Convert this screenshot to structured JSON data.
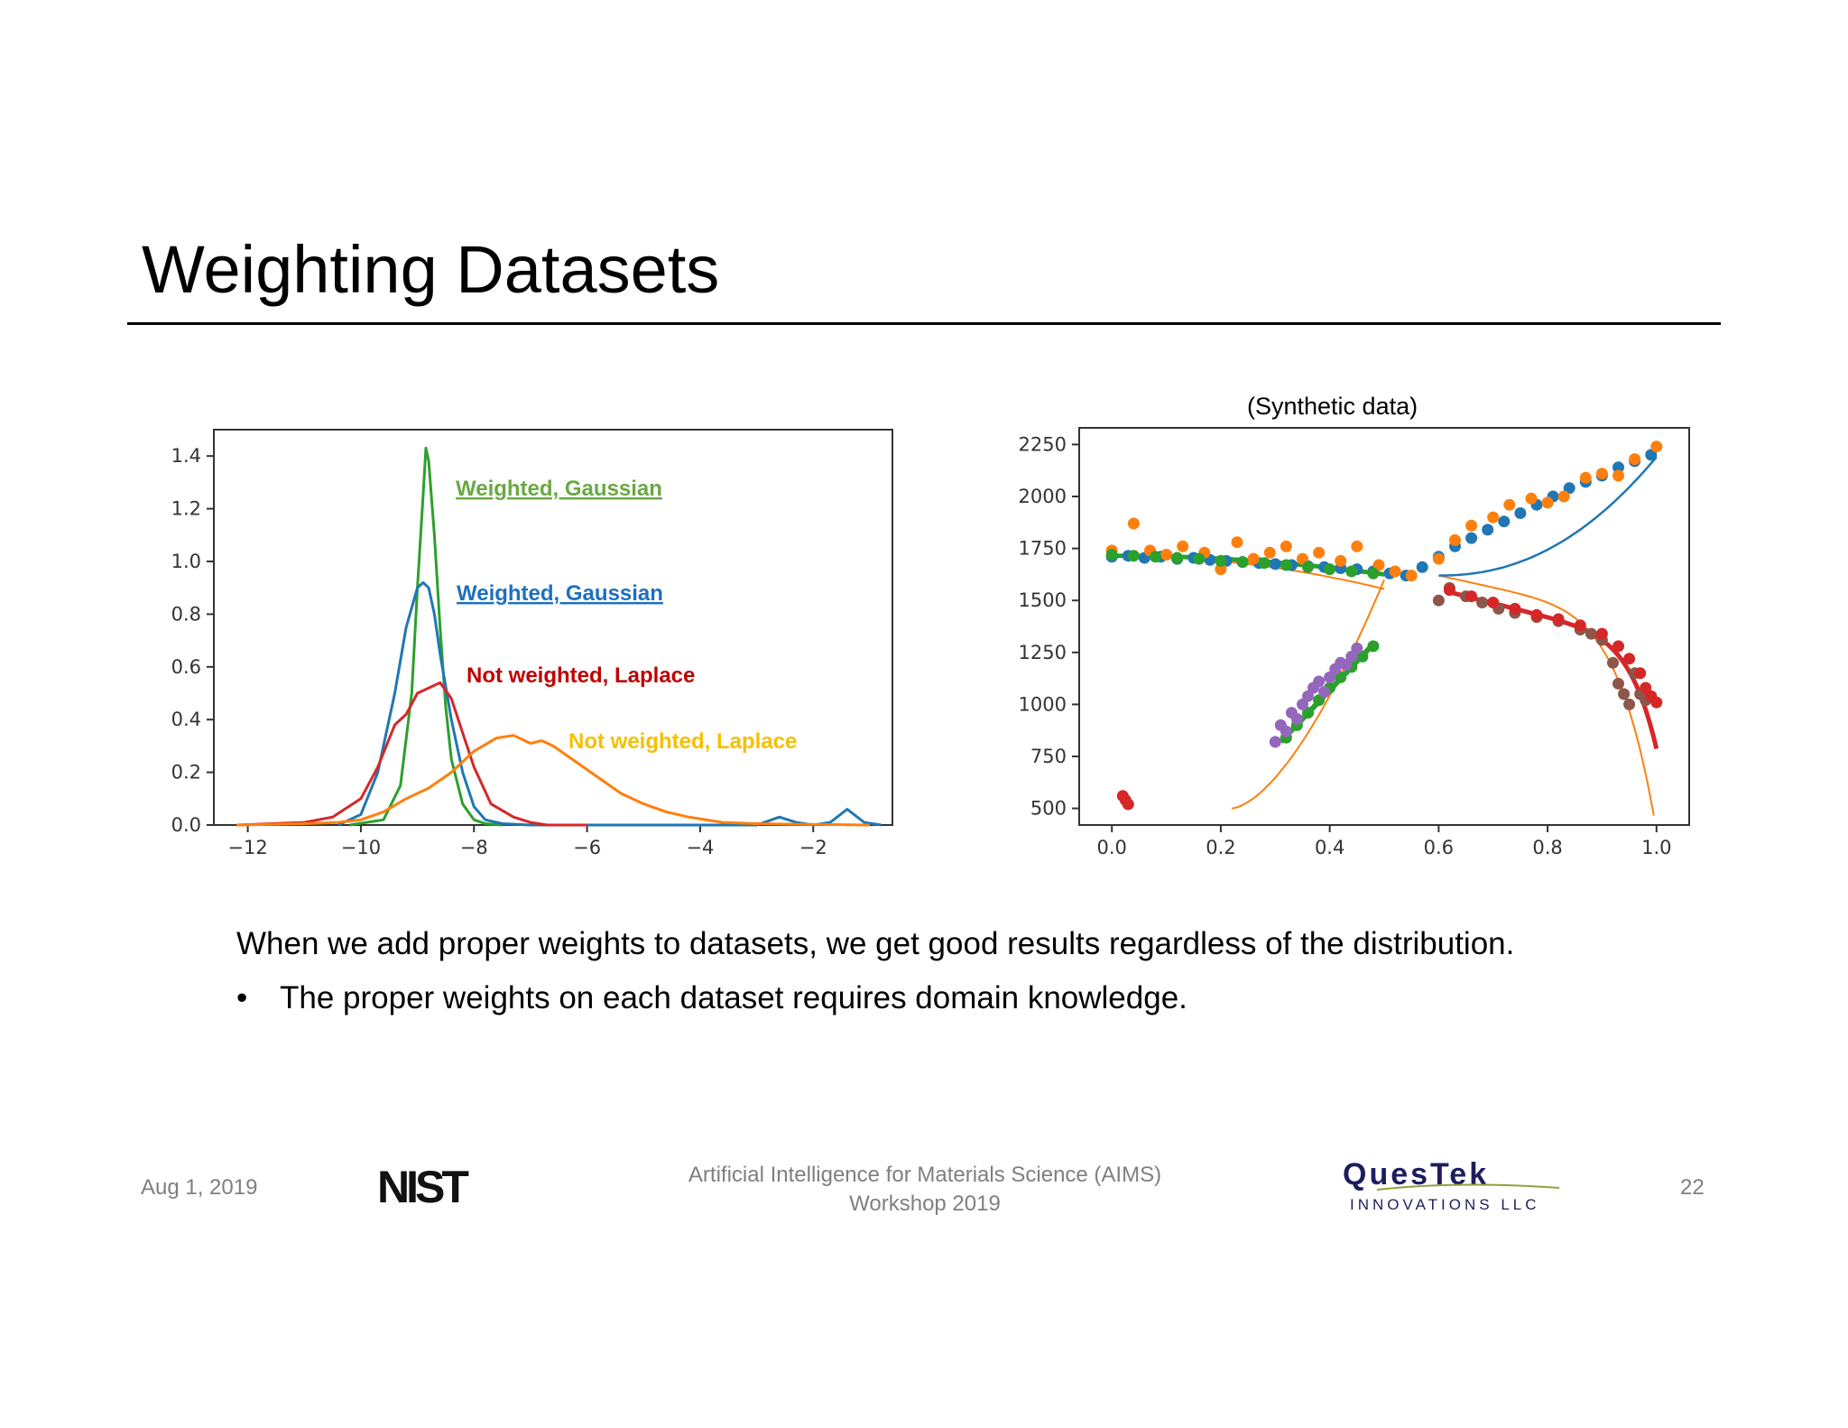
{
  "slide": {
    "title": "Weighting Datasets",
    "synthetic_label": "(Synthetic data)",
    "body_text": "When we add proper weights to datasets, we get good results regardless of the distribution.",
    "bullet_text": "The proper weights on each dataset requires domain knowledge.",
    "bullet_symbol": "•"
  },
  "footer": {
    "date": "Aug 1, 2019",
    "center_line1": "Artificial Intelligence for Materials Science (AIMS)",
    "center_line2": "Workshop 2019",
    "page_number": "22",
    "left_logo": "NIST",
    "right_logo_main": "QuesTek",
    "right_logo_sub": "INNOVATIONS LLC"
  },
  "chart_data": [
    {
      "type": "line",
      "xlim": [
        -12.6,
        -0.6
      ],
      "ylim": [
        0,
        1.5
      ],
      "xticks": [
        -12,
        -10,
        -8,
        -6,
        -4,
        -2
      ],
      "xtick_labels": [
        "−12",
        "−10",
        "−8",
        "−6",
        "−4",
        "−2"
      ],
      "yticks": [
        0,
        0.2,
        0.4,
        0.6,
        0.8,
        1.0,
        1.2,
        1.4
      ],
      "ytick_labels": [
        "0.0",
        "0.2",
        "0.4",
        "0.6",
        "0.8",
        "1.0",
        "1.2",
        "1.4"
      ],
      "annotations": [
        {
          "text": "Weighted, Gaussian",
          "color": "#6aa844",
          "underline": true
        },
        {
          "text": "Weighted, Gaussian",
          "color": "#1f6fbf",
          "underline": true
        },
        {
          "text": "Not weighted, Laplace",
          "color": "#c00000",
          "underline": false
        },
        {
          "text": "Not weighted, Laplace",
          "color": "#f5c000",
          "underline": false
        }
      ],
      "series": [
        {
          "color": "#2ca02c",
          "x": [
            -10.2,
            -9.6,
            -9.3,
            -9.1,
            -9.0,
            -8.9,
            -8.85,
            -8.8,
            -8.7,
            -8.6,
            -8.5,
            -8.4,
            -8.2,
            -8.0,
            -7.8,
            -7.5
          ],
          "y": [
            0,
            0.02,
            0.15,
            0.5,
            0.9,
            1.25,
            1.43,
            1.38,
            1.1,
            0.75,
            0.45,
            0.25,
            0.08,
            0.02,
            0.005,
            0
          ]
        },
        {
          "color": "#1f77b4",
          "x": [
            -10.4,
            -10.0,
            -9.7,
            -9.4,
            -9.2,
            -9.0,
            -8.9,
            -8.8,
            -8.7,
            -8.6,
            -8.4,
            -8.2,
            -8.0,
            -7.8,
            -7.5,
            -7.0,
            -3.0,
            -2.6,
            -2.3,
            -2.0,
            -1.7,
            -1.4,
            -1.1,
            -0.8
          ],
          "y": [
            0,
            0.04,
            0.2,
            0.5,
            0.75,
            0.9,
            0.92,
            0.9,
            0.8,
            0.65,
            0.4,
            0.2,
            0.07,
            0.02,
            0.005,
            0,
            0,
            0.03,
            0.01,
            0.0,
            0.01,
            0.06,
            0.01,
            0
          ]
        },
        {
          "color": "#d62728",
          "x": [
            -12.2,
            -11.0,
            -10.5,
            -10.0,
            -9.7,
            -9.4,
            -9.2,
            -9.0,
            -8.8,
            -8.6,
            -8.4,
            -8.2,
            -8.0,
            -7.7,
            -7.3,
            -7.0,
            -6.7,
            -6.0
          ],
          "y": [
            0,
            0.01,
            0.03,
            0.1,
            0.22,
            0.38,
            0.42,
            0.5,
            0.52,
            0.54,
            0.48,
            0.35,
            0.22,
            0.08,
            0.03,
            0.01,
            0.0,
            0
          ]
        },
        {
          "color": "#ff7f0e",
          "x": [
            -12.2,
            -11.0,
            -10.4,
            -10.0,
            -9.6,
            -9.2,
            -8.8,
            -8.4,
            -8.0,
            -7.6,
            -7.3,
            -7.0,
            -6.8,
            -6.6,
            -6.2,
            -5.8,
            -5.4,
            -5.0,
            -4.6,
            -4.2,
            -3.6,
            -3.0,
            -2.4,
            -1.8,
            -1.4,
            -1.0
          ],
          "y": [
            0,
            0.005,
            0.01,
            0.02,
            0.05,
            0.1,
            0.14,
            0.2,
            0.28,
            0.33,
            0.34,
            0.31,
            0.32,
            0.3,
            0.24,
            0.18,
            0.12,
            0.08,
            0.05,
            0.03,
            0.01,
            0.005,
            0.003,
            0.002,
            0.001,
            0
          ]
        }
      ]
    },
    {
      "type": "scatter",
      "xlim": [
        -0.06,
        1.06
      ],
      "ylim": [
        420,
        2330
      ],
      "xticks": [
        0.0,
        0.2,
        0.4,
        0.6,
        0.8,
        1.0
      ],
      "xtick_labels": [
        "0.0",
        "0.2",
        "0.4",
        "0.6",
        "0.8",
        "1.0"
      ],
      "yticks": [
        500,
        750,
        1000,
        1250,
        1500,
        1750,
        2000,
        2250
      ],
      "ytick_labels": [
        "500",
        "750",
        "1000",
        "1250",
        "1500",
        "1750",
        "2000",
        "2250"
      ],
      "series": [
        {
          "color": "#1f77b4",
          "x": [
            0.0,
            0.03,
            0.06,
            0.09,
            0.12,
            0.15,
            0.18,
            0.21,
            0.24,
            0.27,
            0.3,
            0.33,
            0.36,
            0.39,
            0.42,
            0.45,
            0.48,
            0.51,
            0.54,
            0.57,
            0.6,
            0.63,
            0.66,
            0.69,
            0.72,
            0.75,
            0.78,
            0.81,
            0.84,
            0.87,
            0.9,
            0.93,
            0.96,
            0.99
          ],
          "y": [
            1710,
            1715,
            1705,
            1710,
            1700,
            1705,
            1695,
            1690,
            1685,
            1680,
            1675,
            1670,
            1665,
            1660,
            1655,
            1650,
            1640,
            1630,
            1620,
            1660,
            1710,
            1760,
            1800,
            1840,
            1880,
            1920,
            1960,
            2000,
            2040,
            2070,
            2100,
            2140,
            2170,
            2200
          ]
        },
        {
          "color": "#ff7f0e",
          "x": [
            0.0,
            0.04,
            0.07,
            0.1,
            0.13,
            0.17,
            0.2,
            0.23,
            0.26,
            0.29,
            0.32,
            0.35,
            0.38,
            0.42,
            0.45,
            0.49,
            0.52,
            0.55,
            0.6,
            0.63,
            0.66,
            0.7,
            0.73,
            0.77,
            0.8,
            0.83,
            0.87,
            0.9,
            0.93,
            0.96,
            1.0
          ],
          "y": [
            1740,
            1870,
            1740,
            1720,
            1760,
            1730,
            1650,
            1780,
            1700,
            1730,
            1760,
            1700,
            1730,
            1690,
            1760,
            1670,
            1640,
            1620,
            1700,
            1790,
            1860,
            1900,
            1960,
            1990,
            1970,
            2000,
            2090,
            2110,
            2100,
            2180,
            2240
          ]
        },
        {
          "color": "#2ca02c",
          "x": [
            0.0,
            0.04,
            0.08,
            0.12,
            0.16,
            0.2,
            0.24,
            0.28,
            0.32,
            0.36,
            0.4,
            0.44,
            0.48,
            0.32,
            0.34,
            0.36,
            0.38,
            0.4,
            0.42,
            0.44,
            0.46,
            0.48
          ],
          "y": [
            1720,
            1715,
            1710,
            1705,
            1700,
            1690,
            1685,
            1680,
            1670,
            1660,
            1650,
            1640,
            1630,
            840,
            900,
            960,
            1020,
            1080,
            1130,
            1180,
            1230,
            1280
          ]
        },
        {
          "color": "#9467bd",
          "x": [
            0.3,
            0.31,
            0.32,
            0.33,
            0.34,
            0.35,
            0.36,
            0.37,
            0.38,
            0.39,
            0.4,
            0.41,
            0.42,
            0.43,
            0.44,
            0.45
          ],
          "y": [
            820,
            900,
            870,
            960,
            930,
            1000,
            1040,
            1080,
            1110,
            1060,
            1130,
            1170,
            1200,
            1190,
            1230,
            1270
          ]
        },
        {
          "color": "#8c564b",
          "x": [
            0.6,
            0.62,
            0.65,
            0.68,
            0.71,
            0.74,
            0.78,
            0.82,
            0.86,
            0.88,
            0.9,
            0.92,
            0.93,
            0.94,
            0.95,
            0.96,
            0.97,
            0.98
          ],
          "y": [
            1500,
            1560,
            1520,
            1490,
            1460,
            1440,
            1420,
            1400,
            1360,
            1340,
            1310,
            1200,
            1100,
            1050,
            1000,
            1150,
            1050,
            1020
          ]
        },
        {
          "color": "#d62728",
          "x": [
            0.62,
            0.66,
            0.7,
            0.74,
            0.78,
            0.82,
            0.86,
            0.9,
            0.93,
            0.95,
            0.97,
            0.98,
            0.99,
            1.0,
            0.02,
            0.025,
            0.03
          ],
          "y": [
            1550,
            1520,
            1490,
            1460,
            1430,
            1410,
            1380,
            1340,
            1280,
            1220,
            1150,
            1080,
            1040,
            1010,
            560,
            540,
            520
          ]
        }
      ]
    }
  ]
}
